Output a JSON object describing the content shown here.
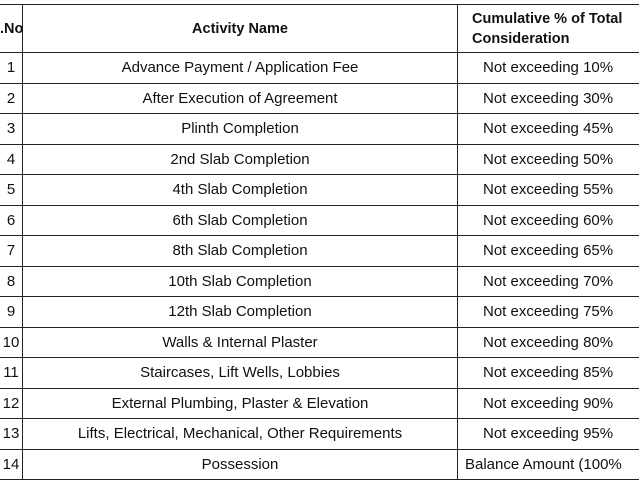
{
  "table": {
    "header": [
      ".No",
      "Activity Name",
      "Cumulative % of Total Consideration"
    ],
    "rows": [
      [
        "1",
        "Advance Payment / Application Fee",
        "Not exceeding 10%"
      ],
      [
        "2",
        "After Execution of Agreement",
        "Not exceeding 30%"
      ],
      [
        "3",
        "Plinth Completion",
        "Not exceeding 45%"
      ],
      [
        "4",
        "2nd Slab Completion",
        "Not exceeding 50%"
      ],
      [
        "5",
        "4th Slab Completion",
        "Not exceeding 55%"
      ],
      [
        "6",
        "6th Slab Completion",
        "Not exceeding 60%"
      ],
      [
        "7",
        "8th Slab Completion",
        "Not exceeding 65%"
      ],
      [
        "8",
        "10th Slab Completion",
        "Not exceeding 70%"
      ],
      [
        "9",
        "12th Slab Completion",
        "Not exceeding 75%"
      ],
      [
        "10",
        "Walls & Internal Plaster",
        "Not exceeding 80%"
      ],
      [
        "11",
        "Staircases, Lift Wells, Lobbies",
        "Not exceeding 85%"
      ],
      [
        "12",
        "External Plumbing, Plaster & Elevation",
        "Not exceeding 90%"
      ],
      [
        "13",
        "Lifts, Electrical, Mechanical, Other Requirements",
        "Not exceeding 95%"
      ],
      [
        "14",
        "Possession",
        "Balance Amount (100%"
      ]
    ]
  }
}
